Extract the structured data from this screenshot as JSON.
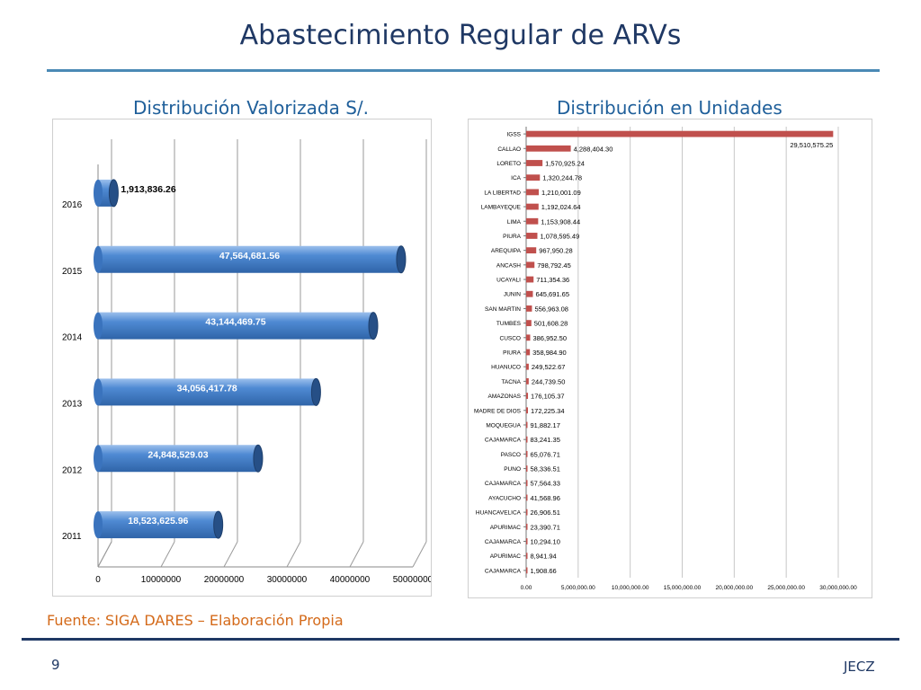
{
  "slide": {
    "title": "Abastecimiento Regular de ARVs",
    "source": "Fuente: SIGA DARES – Elaboración Propia",
    "page_number": "9",
    "author": "JECZ"
  },
  "colors": {
    "title": "#1f3864",
    "accent_rule": "#4a8ab5",
    "source_text": "#d46a1a",
    "bar_blue": "#3e7bc4",
    "bar_red": "#c0504d"
  },
  "chart_data": [
    {
      "type": "bar",
      "orientation": "horizontal",
      "style": "3d-cylinder",
      "title": "Distribución Valorizada S/.",
      "categories": [
        "2011",
        "2012",
        "2013",
        "2014",
        "2015",
        "2016"
      ],
      "values": [
        18523625.96,
        24848529.03,
        34056417.78,
        43144469.75,
        47564681.56,
        1913836.26
      ],
      "data_labels": [
        "18,523,625.96",
        "24,848,529.03",
        "34,056,417.78",
        "43,144,469.75",
        "47,564,681.56",
        "1,913,836.26"
      ],
      "x_ticks": [
        "0",
        "10000000",
        "20000000",
        "30000000",
        "40000000",
        "50000000"
      ],
      "xlim": [
        0,
        50000000
      ],
      "grid": true,
      "legend": "none"
    },
    {
      "type": "bar",
      "orientation": "horizontal",
      "title": "Distribución en Unidades",
      "categories": [
        "IGSS",
        "CALLAO",
        "LORETO",
        "ICA",
        "LA LIBERTAD",
        "LAMBAYEQUE",
        "LIMA",
        "PIURA",
        "AREQUIPA",
        "ANCASH",
        "UCAYALI",
        "JUNIN",
        "SAN MARTIN",
        "TUMBES",
        "CUSCO",
        "PIURA",
        "HUANUCO",
        "TACNA",
        "AMAZONAS",
        "MADRE DE DIOS",
        "MOQUEGUA",
        "CAJAMARCA",
        "PASCO",
        "PUNO",
        "CAJAMARCA",
        "AYACUCHO",
        "HUANCAVELICA",
        "APURIMAC",
        "CAJAMARCA",
        "APURIMAC",
        "CAJAMARCA"
      ],
      "values": [
        29510575.25,
        4288404.3,
        1570925.24,
        1320244.78,
        1210001.09,
        1192024.64,
        1153908.44,
        1078595.49,
        967950.28,
        798792.45,
        711354.36,
        645691.65,
        556963.08,
        501608.28,
        386952.5,
        358984.9,
        249522.67,
        244739.5,
        176105.37,
        172225.34,
        91882.17,
        83241.35,
        65076.71,
        58336.51,
        57564.33,
        41568.96,
        26906.51,
        23390.71,
        10294.1,
        8941.94,
        1908.66
      ],
      "data_labels": [
        "29,510,575.25",
        "4,288,404.30",
        "1,570,925.24",
        "1,320,244.78",
        "1,210,001.09",
        "1,192,024.64",
        "1,153,908.44",
        "1,078,595.49",
        "967,950.28",
        "798,792.45",
        "711,354.36",
        "645,691.65",
        "556,963.08",
        "501,608.28",
        "386,952.50",
        "358,984.90",
        "249,522.67",
        "244,739.50",
        "176,105.37",
        "172,225.34",
        "91,882.17",
        "83,241.35",
        "65,076.71",
        "58,336.51",
        "57,564.33",
        "41,568.96",
        "26,906.51",
        "23,390.71",
        "10,294.10",
        "8,941.94",
        "1,908.66"
      ],
      "x_ticks": [
        "0.00",
        "5,000,000.00",
        "10,000,000.00",
        "15,000,000.00",
        "20,000,000.00",
        "25,000,000.00",
        "30,000,000.00"
      ],
      "xlim": [
        0,
        30000000
      ],
      "grid": true,
      "legend": "none"
    }
  ]
}
